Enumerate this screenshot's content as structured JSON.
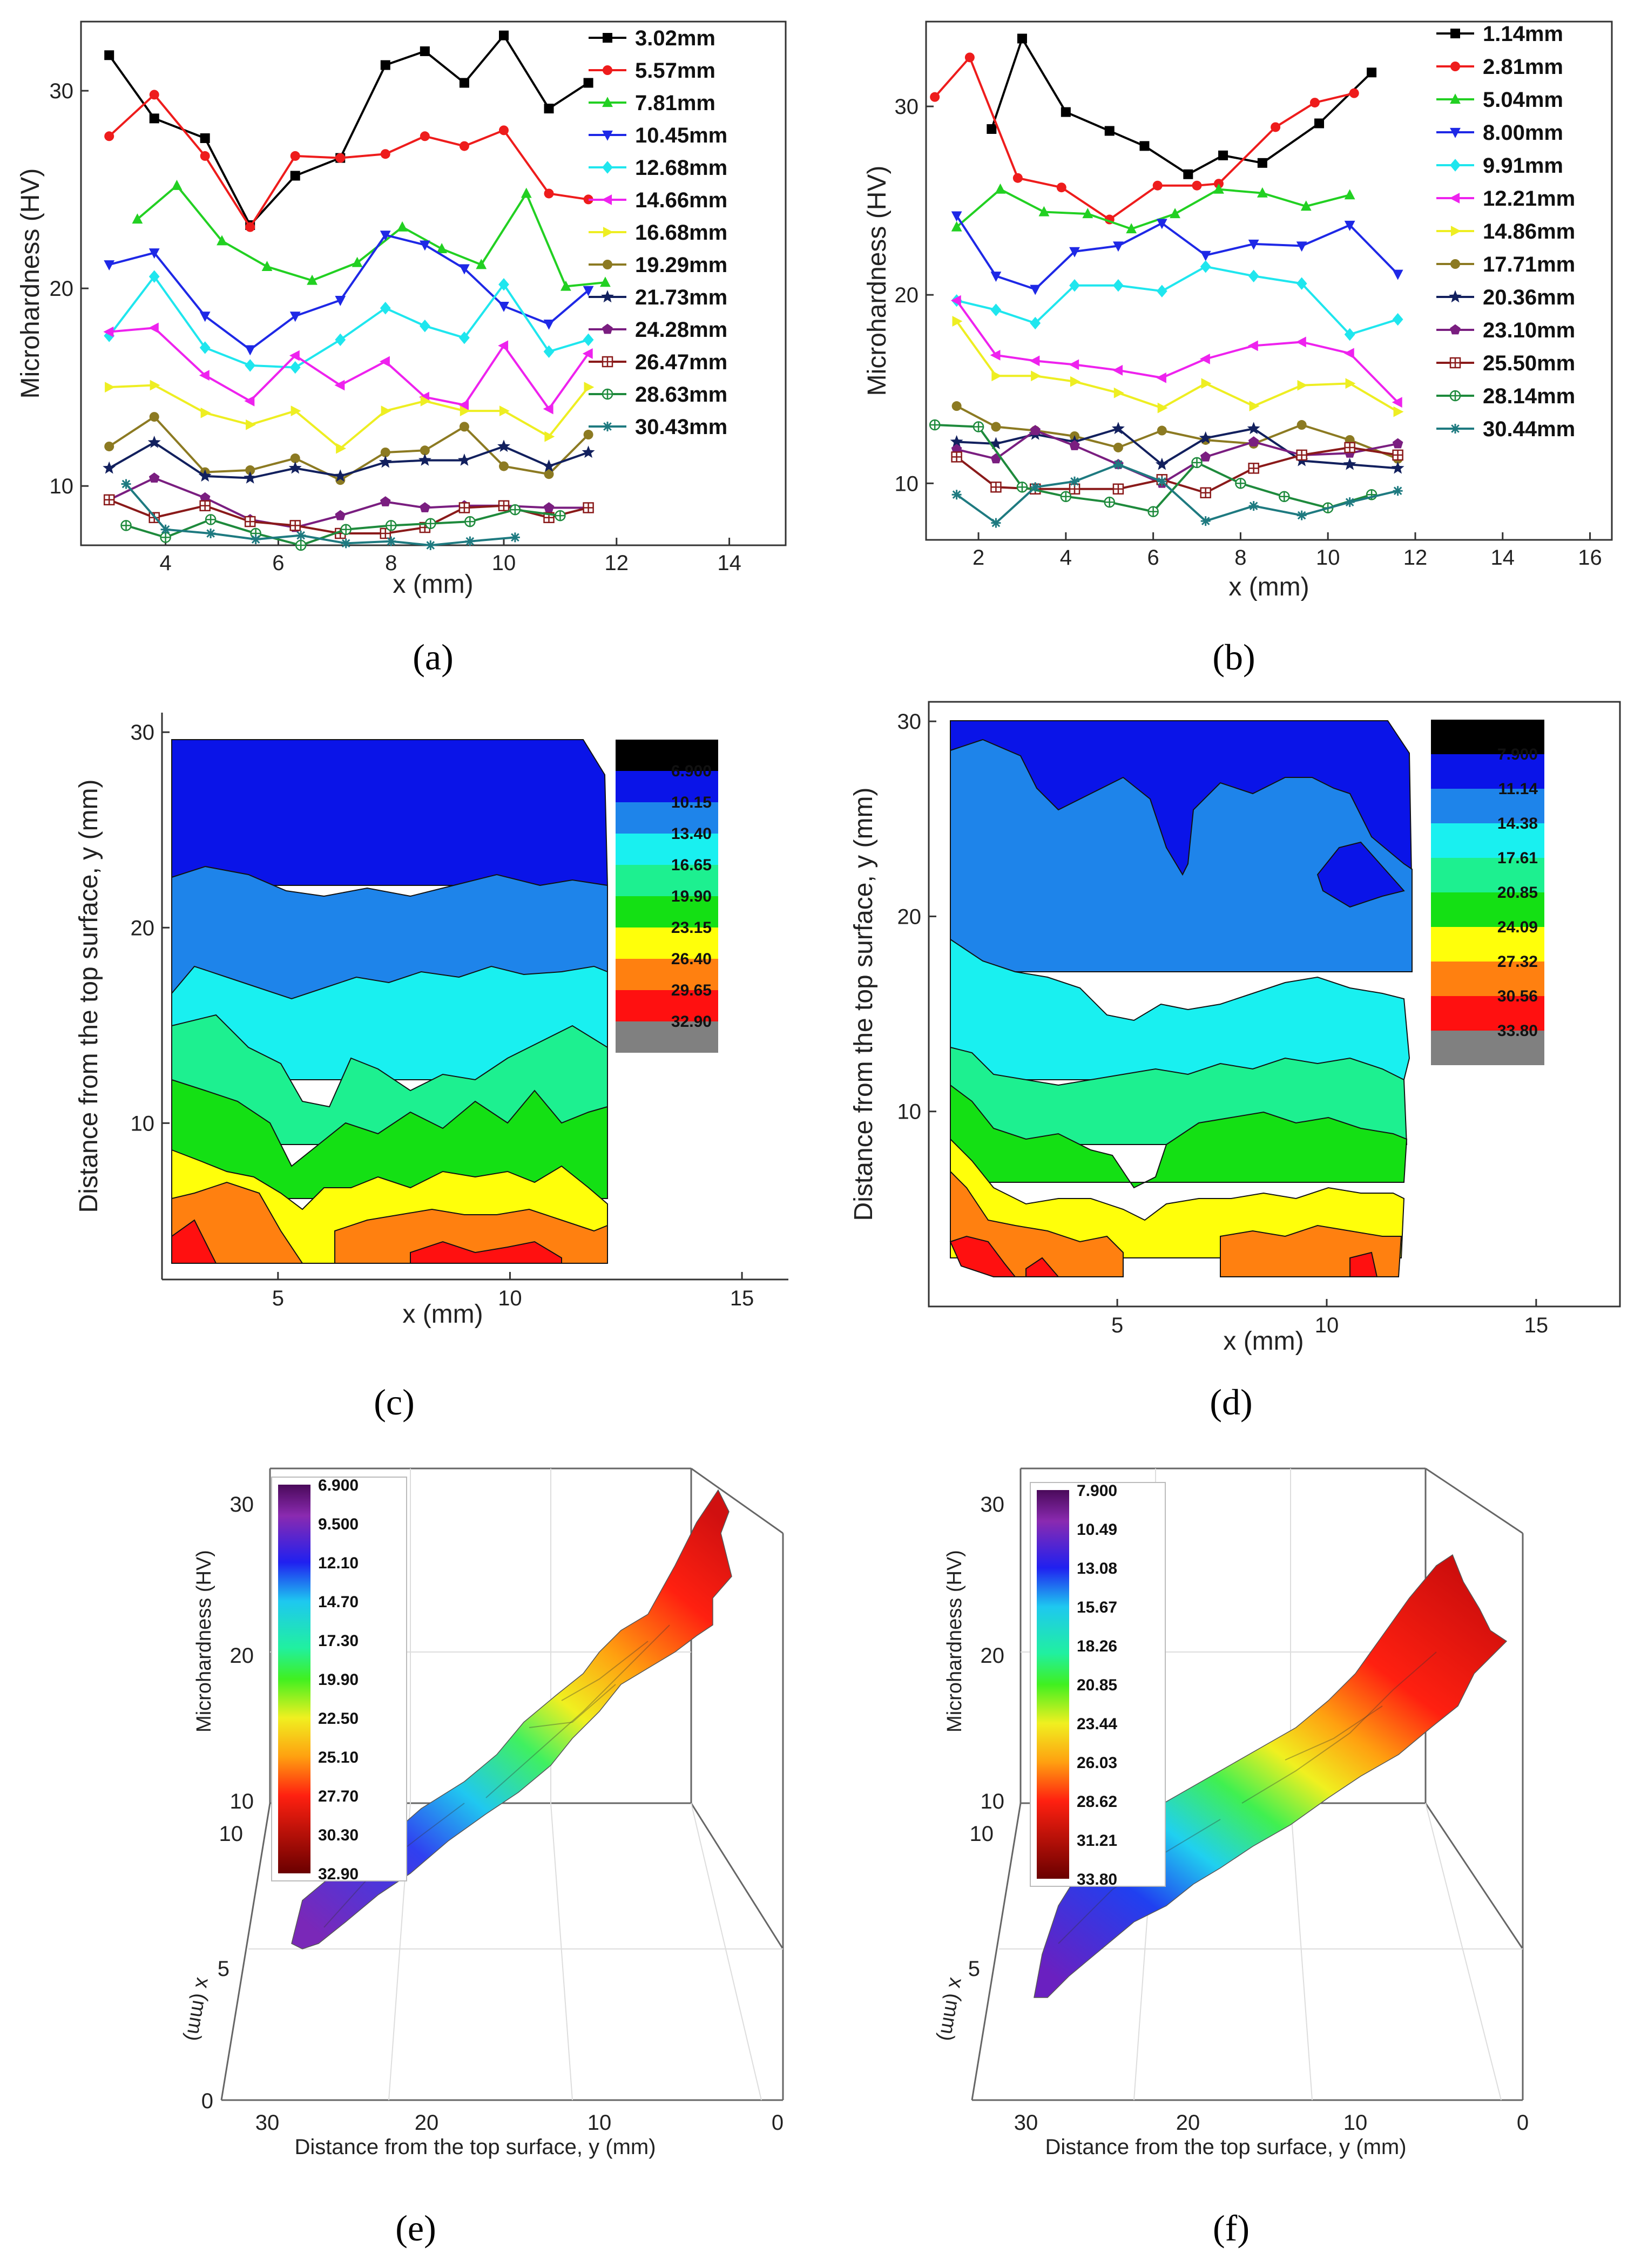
{
  "captions": {
    "a": "(a)",
    "b": "(b)",
    "c": "(c)",
    "d": "(d)",
    "e": "(e)",
    "f": "(f)"
  },
  "chart_data": [
    {
      "id": "a",
      "type": "line",
      "xlabel": "x (mm)",
      "ylabel": "Microhardness (HV)",
      "xlim": [
        2.5,
        15
      ],
      "ylim": [
        7,
        33.5
      ],
      "xticks": [
        4,
        6,
        8,
        10,
        12,
        14
      ],
      "yticks": [
        10,
        20,
        30
      ],
      "legend_position": "top-right",
      "series": [
        {
          "name": "3.02mm",
          "color": "#000000",
          "marker": "square",
          "x": [
            3,
            3.8,
            4.7,
            5.5,
            6.3,
            7.1,
            7.9,
            8.6,
            9.3,
            10,
            10.8,
            11.5
          ],
          "y": [
            31.8,
            28.6,
            27.6,
            23.2,
            25.7,
            26.6,
            31.3,
            32.0,
            30.4,
            32.8,
            29.1,
            30.4
          ]
        },
        {
          "name": "5.57mm",
          "color": "#ee1c1c",
          "marker": "circle",
          "x": [
            3,
            3.8,
            4.7,
            5.5,
            6.3,
            7.1,
            7.9,
            8.6,
            9.3,
            10,
            10.8,
            11.5
          ],
          "y": [
            27.7,
            29.8,
            26.7,
            23.1,
            26.7,
            26.6,
            26.8,
            27.7,
            27.2,
            28.0,
            24.8,
            24.5
          ]
        },
        {
          "name": "7.81mm",
          "color": "#22d022",
          "marker": "triangle-up",
          "x": [
            3.5,
            4.2,
            5,
            5.8,
            6.6,
            7.4,
            8.2,
            8.9,
            9.6,
            10.4,
            11.1,
            11.8
          ],
          "y": [
            23.5,
            25.2,
            22.4,
            21.1,
            20.4,
            21.3,
            23.1,
            22.0,
            21.2,
            24.8,
            20.1,
            20.3
          ]
        },
        {
          "name": "10.45mm",
          "color": "#1e28e6",
          "marker": "triangle-down",
          "x": [
            3,
            3.8,
            4.7,
            5.5,
            6.3,
            7.1,
            7.9,
            8.6,
            9.3,
            10,
            10.8,
            11.5
          ],
          "y": [
            21.2,
            21.8,
            18.6,
            16.9,
            18.6,
            19.4,
            22.7,
            22.2,
            21.0,
            19.1,
            18.2,
            19.9
          ]
        },
        {
          "name": "12.68mm",
          "color": "#1fe6ee",
          "marker": "diamond",
          "x": [
            3,
            3.8,
            4.7,
            5.5,
            6.3,
            7.1,
            7.9,
            8.6,
            9.3,
            10,
            10.8,
            11.5
          ],
          "y": [
            17.6,
            20.6,
            17.0,
            16.1,
            16.0,
            17.4,
            19.0,
            18.1,
            17.5,
            20.2,
            16.8,
            17.4
          ]
        },
        {
          "name": "14.66mm",
          "color": "#ee22ee",
          "marker": "triangle-left",
          "x": [
            3,
            3.8,
            4.7,
            5.5,
            6.3,
            7.1,
            7.9,
            8.6,
            9.3,
            10,
            10.8,
            11.5
          ],
          "y": [
            17.8,
            18.0,
            15.6,
            14.3,
            16.6,
            15.1,
            16.3,
            14.5,
            14.1,
            17.1,
            13.9,
            16.7
          ]
        },
        {
          "name": "16.68mm",
          "color": "#eeee22",
          "marker": "triangle-right",
          "x": [
            3,
            3.8,
            4.7,
            5.5,
            6.3,
            7.1,
            7.9,
            8.6,
            9.3,
            10,
            10.8,
            11.5
          ],
          "y": [
            15.0,
            15.1,
            13.7,
            13.1,
            13.8,
            11.9,
            13.8,
            14.3,
            13.8,
            13.8,
            12.5,
            15.0
          ]
        },
        {
          "name": "19.29mm",
          "color": "#8c7a22",
          "marker": "circle",
          "x": [
            3,
            3.8,
            4.7,
            5.5,
            6.3,
            7.1,
            7.9,
            8.6,
            9.3,
            10,
            10.8,
            11.5
          ],
          "y": [
            12.0,
            13.5,
            10.7,
            10.8,
            11.4,
            10.3,
            11.7,
            11.8,
            13.0,
            11.0,
            10.6,
            12.6
          ]
        },
        {
          "name": "21.73mm",
          "color": "#12205e",
          "marker": "star",
          "x": [
            3,
            3.8,
            4.7,
            5.5,
            6.3,
            7.1,
            7.9,
            8.6,
            9.3,
            10,
            10.8,
            11.5
          ],
          "y": [
            10.9,
            12.2,
            10.5,
            10.4,
            10.9,
            10.5,
            11.2,
            11.3,
            11.3,
            12.0,
            11.0,
            11.7
          ]
        },
        {
          "name": "24.28mm",
          "color": "#7a1e80",
          "marker": "pentagon",
          "x": [
            3,
            3.8,
            4.7,
            5.5,
            6.3,
            7.1,
            7.9,
            8.6,
            9.3,
            10,
            10.8,
            11.5
          ],
          "y": [
            9.3,
            10.4,
            9.4,
            8.3,
            7.9,
            8.5,
            9.2,
            8.9,
            9.0,
            9.0,
            8.9,
            8.9
          ]
        },
        {
          "name": "26.47mm",
          "color": "#8a1a1a",
          "marker": "square-plus",
          "x": [
            3,
            3.8,
            4.7,
            5.5,
            6.3,
            7.1,
            7.9,
            8.6,
            9.3,
            10,
            10.8,
            11.5
          ],
          "y": [
            9.3,
            8.4,
            9.0,
            8.2,
            8.0,
            7.6,
            7.6,
            7.9,
            8.9,
            9.0,
            8.4,
            8.9
          ]
        },
        {
          "name": "28.63mm",
          "color": "#1e8a3c",
          "marker": "circle-plus",
          "x": [
            3.3,
            4,
            4.8,
            5.6,
            6.4,
            7.2,
            8,
            8.7,
            9.4,
            10.2,
            11
          ],
          "y": [
            8.0,
            7.4,
            8.3,
            7.6,
            7.0,
            7.8,
            8.0,
            8.1,
            8.2,
            8.8,
            8.5
          ]
        },
        {
          "name": "30.43mm",
          "color": "#1e7a80",
          "marker": "asterisk",
          "x": [
            3.3,
            4,
            4.8,
            5.6,
            6.4,
            7.2,
            8,
            8.7,
            9.4,
            10.2
          ],
          "y": [
            10.1,
            7.8,
            7.6,
            7.3,
            7.5,
            7.1,
            7.2,
            7.0,
            7.2,
            7.4
          ]
        }
      ]
    },
    {
      "id": "b",
      "type": "line",
      "xlabel": "x (mm)",
      "ylabel": "Microhardness (HV)",
      "xlim": [
        0.8,
        16.5
      ],
      "ylim": [
        7,
        34.5
      ],
      "xticks": [
        2,
        4,
        6,
        8,
        10,
        12,
        14,
        16
      ],
      "yticks": [
        10,
        20,
        30
      ],
      "legend_position": "top-right",
      "series": [
        {
          "name": "1.14mm",
          "color": "#000000",
          "marker": "square",
          "x": [
            2.3,
            3,
            4,
            5,
            5.8,
            6.8,
            7.6,
            8.5,
            9.8,
            11
          ],
          "y": [
            28.8,
            33.6,
            29.7,
            28.7,
            27.9,
            26.4,
            27.4,
            27.0,
            29.1,
            31.8
          ]
        },
        {
          "name": "2.81mm",
          "color": "#ee1c1c",
          "marker": "circle",
          "x": [
            1,
            1.8,
            2.9,
            3.9,
            5,
            6.1,
            7,
            7.5,
            8.8,
            9.7,
            10.6
          ],
          "y": [
            30.5,
            32.6,
            26.2,
            25.7,
            24.0,
            25.8,
            25.8,
            25.9,
            28.9,
            30.2,
            30.7
          ]
        },
        {
          "name": "5.04mm",
          "color": "#22d022",
          "marker": "triangle-up",
          "x": [
            1.5,
            2.5,
            3.5,
            4.5,
            5.5,
            6.5,
            7.5,
            8.5,
            9.5,
            10.5
          ],
          "y": [
            23.6,
            25.6,
            24.4,
            24.3,
            23.5,
            24.3,
            25.6,
            25.4,
            24.7,
            25.3
          ]
        },
        {
          "name": "8.00mm",
          "color": "#1e28e6",
          "marker": "triangle-down",
          "x": [
            1.5,
            2.4,
            3.3,
            4.2,
            5.2,
            6.2,
            7.2,
            8.3,
            9.4,
            10.5,
            11.6
          ],
          "y": [
            24.2,
            21.0,
            20.3,
            22.3,
            22.6,
            23.8,
            22.1,
            22.7,
            22.6,
            23.7,
            21.1
          ]
        },
        {
          "name": "9.91mm",
          "color": "#1fe6ee",
          "marker": "diamond",
          "x": [
            1.5,
            2.4,
            3.3,
            4.2,
            5.2,
            6.2,
            7.2,
            8.3,
            9.4,
            10.5,
            11.6
          ],
          "y": [
            19.7,
            19.2,
            18.5,
            20.5,
            20.5,
            20.2,
            21.5,
            21.0,
            20.6,
            17.9,
            18.7
          ]
        },
        {
          "name": "12.21mm",
          "color": "#ee22ee",
          "marker": "triangle-left",
          "x": [
            1.5,
            2.4,
            3.3,
            4.2,
            5.2,
            6.2,
            7.2,
            8.3,
            9.4,
            10.5,
            11.6
          ],
          "y": [
            19.7,
            16.8,
            16.5,
            16.3,
            16.0,
            15.6,
            16.6,
            17.3,
            17.5,
            16.9,
            14.3
          ]
        },
        {
          "name": "14.86mm",
          "color": "#eeee22",
          "marker": "triangle-right",
          "x": [
            1.5,
            2.4,
            3.3,
            4.2,
            5.2,
            6.2,
            7.2,
            8.3,
            9.4,
            10.5,
            11.6
          ],
          "y": [
            18.6,
            15.7,
            15.7,
            15.4,
            14.8,
            14.0,
            15.3,
            14.1,
            15.2,
            15.3,
            13.8
          ]
        },
        {
          "name": "17.71mm",
          "color": "#8c7a22",
          "marker": "circle",
          "x": [
            1.5,
            2.4,
            3.3,
            4.2,
            5.2,
            6.2,
            7.2,
            8.3,
            9.4,
            10.5,
            11.6
          ],
          "y": [
            14.1,
            13.0,
            12.8,
            12.5,
            11.9,
            12.8,
            12.3,
            12.1,
            13.1,
            12.3,
            11.3
          ]
        },
        {
          "name": "20.36mm",
          "color": "#12205e",
          "marker": "star",
          "x": [
            1.5,
            2.4,
            3.3,
            4.2,
            5.2,
            6.2,
            7.2,
            8.3,
            9.4,
            10.5,
            11.6
          ],
          "y": [
            12.2,
            12.1,
            12.6,
            12.2,
            12.9,
            11.0,
            12.4,
            12.9,
            11.2,
            11.0,
            10.8
          ]
        },
        {
          "name": "23.10mm",
          "color": "#7a1e80",
          "marker": "pentagon",
          "x": [
            1.5,
            2.4,
            3.3,
            4.2,
            5.2,
            6.2,
            7.2,
            8.3,
            9.4,
            10.5,
            11.6
          ],
          "y": [
            11.8,
            11.3,
            12.8,
            12.0,
            11.0,
            10.0,
            11.4,
            12.2,
            11.5,
            11.6,
            12.1
          ]
        },
        {
          "name": "25.50mm",
          "color": "#8a1a1a",
          "marker": "square-plus",
          "x": [
            1.5,
            2.4,
            3.3,
            4.2,
            5.2,
            6.2,
            7.2,
            8.3,
            9.4,
            10.5,
            11.6
          ],
          "y": [
            11.4,
            9.8,
            9.7,
            9.7,
            9.7,
            10.2,
            9.5,
            10.8,
            11.5,
            11.9,
            11.5
          ]
        },
        {
          "name": "28.14mm",
          "color": "#1e8a3c",
          "marker": "circle-plus",
          "x": [
            1,
            2,
            3,
            4,
            5,
            6,
            7,
            8,
            9,
            10,
            11
          ],
          "y": [
            13.1,
            13.0,
            9.8,
            9.3,
            9.0,
            8.5,
            11.1,
            10.0,
            9.3,
            8.7,
            9.4
          ]
        },
        {
          "name": "30.44mm",
          "color": "#1e7a80",
          "marker": "asterisk",
          "x": [
            1.5,
            2.4,
            3.3,
            4.2,
            5.2,
            6.2,
            7.2,
            8.3,
            9.4,
            10.5,
            11.6
          ],
          "y": [
            9.4,
            7.9,
            9.8,
            10.1,
            11.0,
            10.1,
            8.0,
            8.8,
            8.3,
            9.0,
            9.6
          ]
        }
      ]
    },
    {
      "id": "c",
      "type": "contour",
      "xlabel": "x (mm)",
      "ylabel": "Distance from the top surface, y (mm)",
      "xlim": [
        2.5,
        16
      ],
      "ylim": [
        2,
        31
      ],
      "xticks": [
        5,
        10,
        15
      ],
      "yticks": [
        10,
        20,
        30
      ],
      "levels": [
        "6.900",
        "10.15",
        "13.40",
        "16.65",
        "19.90",
        "23.15",
        "26.40",
        "29.65",
        "32.90"
      ],
      "colors": [
        "#000000",
        "#0a14e8",
        "#1e84ea",
        "#19f0f0",
        "#1df090",
        "#14e014",
        "#ffff0a",
        "#ff8010",
        "#ff1010",
        "#808080"
      ]
    },
    {
      "id": "d",
      "type": "contour",
      "xlabel": "x (mm)",
      "ylabel": "Distance from the top surface, y (mm)",
      "xlim": [
        0.5,
        17
      ],
      "ylim": [
        0,
        31
      ],
      "xticks": [
        5,
        10,
        15
      ],
      "yticks": [
        10,
        20,
        30
      ],
      "levels": [
        "7.900",
        "11.14",
        "14.38",
        "17.61",
        "20.85",
        "24.09",
        "27.32",
        "30.56",
        "33.80"
      ],
      "colors": [
        "#000000",
        "#0a14e8",
        "#1e84ea",
        "#19f0f0",
        "#1df090",
        "#14e014",
        "#ffff0a",
        "#ff8010",
        "#ff1010",
        "#808080"
      ]
    },
    {
      "id": "e",
      "type": "surface3d",
      "zlabel": "Microhardness (HV)",
      "ylabel": "x (mm)",
      "xlabel": "Distance from the top surface, y (mm)",
      "zticks": [
        "10",
        "20",
        "30"
      ],
      "yticks": [
        "0",
        "5",
        "10"
      ],
      "xticks": [
        "30",
        "20",
        "10",
        "0"
      ],
      "levels": [
        "6.900",
        "9.500",
        "12.10",
        "14.70",
        "17.30",
        "19.90",
        "22.50",
        "25.10",
        "27.70",
        "30.30",
        "32.90"
      ]
    },
    {
      "id": "f",
      "type": "surface3d",
      "zlabel": "Microhardness (HV)",
      "ylabel": "x (mm)",
      "xlabel": "Distance from the top surface, y (mm)",
      "zticks": [
        "10",
        "20",
        "30"
      ],
      "yticks": [
        "5",
        "10"
      ],
      "xticks": [
        "30",
        "20",
        "10",
        "0"
      ],
      "levels": [
        "7.900",
        "10.49",
        "13.08",
        "15.67",
        "18.26",
        "20.85",
        "23.44",
        "26.03",
        "28.62",
        "31.21",
        "33.80"
      ]
    }
  ]
}
